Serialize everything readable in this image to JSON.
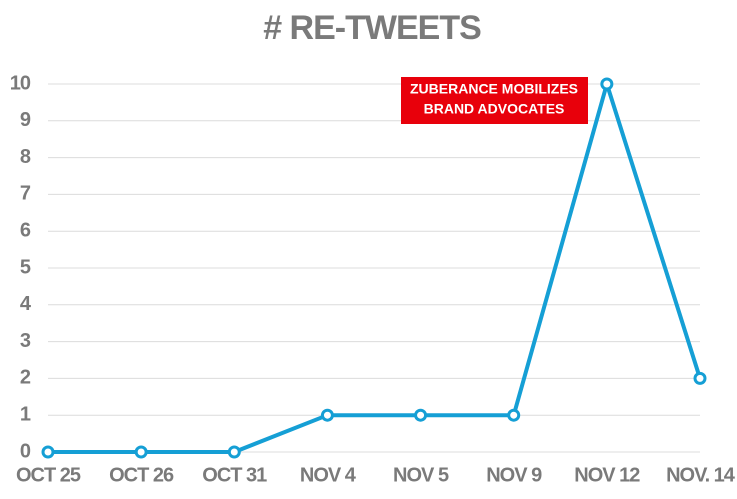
{
  "chart_data": {
    "type": "line",
    "title": "# RE-TWEETS",
    "categories": [
      "OCT 25",
      "OCT 26",
      "OCT 31",
      "NOV 4",
      "NOV 5",
      "NOV 9",
      "NOV 12",
      "NOV. 14"
    ],
    "values": [
      0,
      0,
      0,
      1,
      1,
      1,
      10,
      2
    ],
    "color": "#159fd5",
    "ylim": [
      0,
      10
    ],
    "yticks": [
      0,
      1,
      2,
      3,
      4,
      5,
      6,
      7,
      8,
      9,
      10
    ],
    "grid": true,
    "annotation": [
      "ZUBERANCE MOBILIZES",
      "BRAND ADVOCATES"
    ],
    "annotation_color": "#e8000b"
  }
}
